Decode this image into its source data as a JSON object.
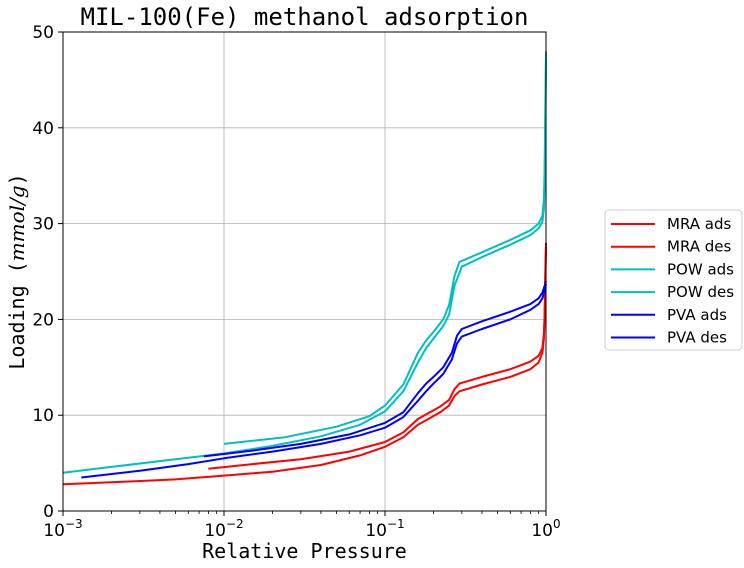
{
  "chart_data": {
    "type": "line",
    "title": "MIL-100(Fe) methanol adsorption",
    "xlabel": "Relative Pressure",
    "ylabel_prefix": "Loading (",
    "ylabel_unit": "mmol/g",
    "ylabel_suffix": ")",
    "xscale": "log",
    "xlim": [
      0.001,
      1
    ],
    "ylim": [
      0,
      50
    ],
    "grid": true,
    "legend_position": "right",
    "x_ticks": [
      {
        "value": 0.001,
        "base": "10",
        "exp": "−3"
      },
      {
        "value": 0.01,
        "base": "10",
        "exp": "−2"
      },
      {
        "value": 0.1,
        "base": "10",
        "exp": "−1"
      },
      {
        "value": 1,
        "base": "10",
        "exp": "0"
      }
    ],
    "y_ticks": [
      0,
      10,
      20,
      30,
      40,
      50
    ],
    "y_tick_labels": [
      "0",
      "10",
      "20",
      "30",
      "40",
      "50"
    ],
    "series": [
      {
        "name": "MRA ads",
        "color": "#ff0000",
        "x": [
          0.001,
          0.002,
          0.005,
          0.01,
          0.02,
          0.04,
          0.07,
          0.1,
          0.13,
          0.16,
          0.19,
          0.22,
          0.25,
          0.27,
          0.29,
          0.4,
          0.6,
          0.8,
          0.9,
          0.95,
          0.97,
          0.98,
          0.99,
          1.0
        ],
        "y": [
          2.8,
          3.0,
          3.3,
          3.7,
          4.1,
          4.8,
          5.8,
          6.7,
          7.7,
          9.0,
          9.7,
          10.3,
          11.0,
          12.0,
          12.5,
          13.2,
          14.0,
          14.8,
          15.5,
          16.5,
          18.0,
          20.0,
          24.0,
          27.5
        ]
      },
      {
        "name": "MRA des",
        "color": "#ff0000",
        "x": [
          0.008,
          0.015,
          0.03,
          0.06,
          0.1,
          0.13,
          0.16,
          0.19,
          0.22,
          0.25,
          0.27,
          0.29,
          0.4,
          0.6,
          0.8,
          0.9,
          0.95,
          0.97,
          0.98,
          0.99,
          1.0
        ],
        "y": [
          4.4,
          4.9,
          5.4,
          6.2,
          7.2,
          8.2,
          9.6,
          10.3,
          10.9,
          11.6,
          12.7,
          13.3,
          14.0,
          14.8,
          15.6,
          16.2,
          17.0,
          18.5,
          20.5,
          25.0,
          28.0
        ]
      },
      {
        "name": "POW ads",
        "color": "#00bfbf",
        "x": [
          0.001,
          0.002,
          0.005,
          0.01,
          0.02,
          0.04,
          0.07,
          0.1,
          0.13,
          0.16,
          0.18,
          0.2,
          0.23,
          0.25,
          0.27,
          0.3,
          0.4,
          0.6,
          0.8,
          0.9,
          0.95,
          0.97,
          0.98,
          0.99,
          1.0
        ],
        "y": [
          4.0,
          4.6,
          5.4,
          6.0,
          6.8,
          7.8,
          9.0,
          10.4,
          12.5,
          15.5,
          17.0,
          18.0,
          19.3,
          20.5,
          23.5,
          25.5,
          26.5,
          27.8,
          28.8,
          29.5,
          30.2,
          31.5,
          34.0,
          40.0,
          47.0
        ]
      },
      {
        "name": "POW des",
        "color": "#00bfbf",
        "x": [
          0.01,
          0.024,
          0.05,
          0.08,
          0.1,
          0.13,
          0.16,
          0.18,
          0.2,
          0.23,
          0.25,
          0.27,
          0.29,
          0.4,
          0.6,
          0.8,
          0.9,
          0.95,
          0.97,
          0.98,
          0.99,
          1.0
        ],
        "y": [
          7.0,
          7.7,
          8.8,
          9.9,
          11.0,
          13.2,
          16.5,
          17.8,
          18.7,
          20.0,
          21.5,
          24.5,
          26.0,
          27.0,
          28.3,
          29.3,
          30.0,
          30.8,
          32.5,
          35.5,
          42.0,
          48.0
        ]
      },
      {
        "name": "PVA ads",
        "color": "#0000ff",
        "x": [
          0.0013,
          0.003,
          0.006,
          0.01,
          0.02,
          0.04,
          0.07,
          0.1,
          0.13,
          0.16,
          0.18,
          0.2,
          0.23,
          0.26,
          0.28,
          0.3,
          0.4,
          0.6,
          0.8,
          0.9,
          0.95,
          0.98,
          1.0
        ],
        "y": [
          3.5,
          4.2,
          4.9,
          5.5,
          6.2,
          7.0,
          7.9,
          8.7,
          9.8,
          11.5,
          12.5,
          13.3,
          14.3,
          15.8,
          17.5,
          18.2,
          19.0,
          20.0,
          21.0,
          21.6,
          22.2,
          23.0,
          23.7
        ]
      },
      {
        "name": "PVA des",
        "color": "#0000ff",
        "x": [
          0.0075,
          0.015,
          0.03,
          0.06,
          0.1,
          0.13,
          0.16,
          0.18,
          0.2,
          0.23,
          0.26,
          0.28,
          0.3,
          0.4,
          0.6,
          0.8,
          0.9,
          0.95,
          0.98,
          1.0
        ],
        "y": [
          5.7,
          6.3,
          7.0,
          8.0,
          9.2,
          10.3,
          12.3,
          13.3,
          14.0,
          15.0,
          16.5,
          18.3,
          19.0,
          19.8,
          20.8,
          21.6,
          22.2,
          22.8,
          23.5,
          24.0
        ]
      }
    ]
  }
}
